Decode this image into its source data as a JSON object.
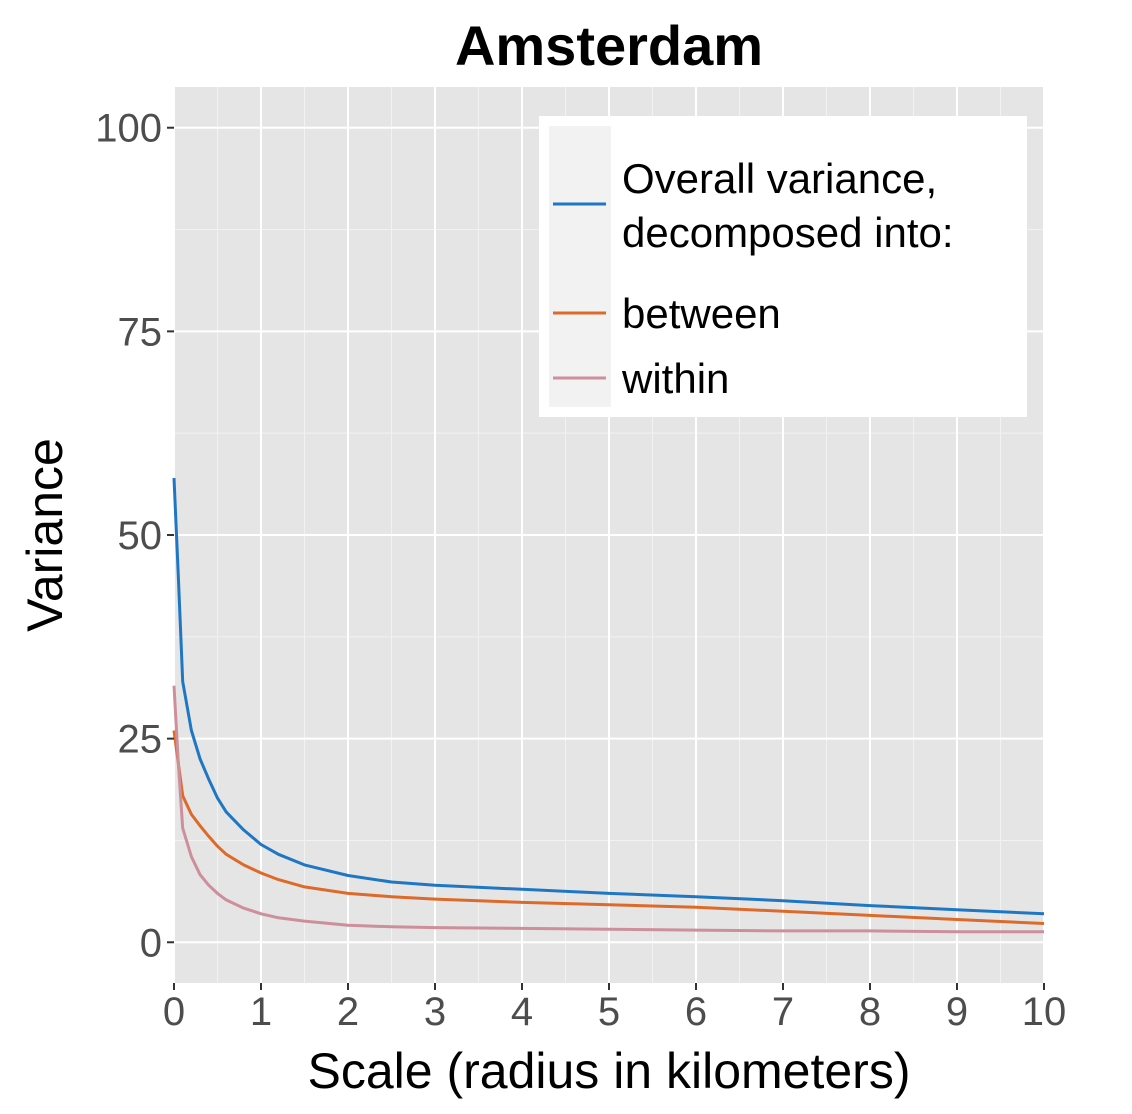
{
  "chart_data": {
    "type": "line",
    "title": "Amsterdam",
    "xlabel": "Scale (radius in kilometers)",
    "ylabel": "Variance",
    "xlim": [
      0,
      10
    ],
    "ylim": [
      -5,
      105
    ],
    "x_ticks": [
      0,
      1,
      2,
      3,
      4,
      5,
      6,
      7,
      8,
      9,
      10
    ],
    "y_ticks": [
      0,
      25,
      50,
      75,
      100
    ],
    "grid": true,
    "legend_position": "top-right",
    "background_color": "#e5e5e5",
    "series": [
      {
        "name_lines": [
          "Overall variance,",
          "decomposed into:"
        ],
        "color": "#1f77c4",
        "x": [
          0,
          0.05,
          0.1,
          0.2,
          0.3,
          0.4,
          0.5,
          0.6,
          0.8,
          1.0,
          1.2,
          1.5,
          2.0,
          2.5,
          3,
          4,
          5,
          6,
          7,
          8,
          9,
          10
        ],
        "values": [
          57,
          45,
          32,
          26,
          22.5,
          20,
          17.7,
          16,
          13.8,
          12,
          10.8,
          9.5,
          8.2,
          7.4,
          7,
          6.5,
          6,
          5.6,
          5.1,
          4.5,
          4,
          3.5
        ]
      },
      {
        "name": "between",
        "color": "#dd6a2a",
        "x": [
          0,
          0.05,
          0.1,
          0.2,
          0.3,
          0.4,
          0.5,
          0.6,
          0.8,
          1.0,
          1.2,
          1.5,
          2.0,
          2.5,
          3,
          4,
          5,
          6,
          7,
          8,
          9,
          10
        ],
        "values": [
          26,
          22,
          18,
          15.7,
          14.3,
          13,
          11.8,
          10.8,
          9.5,
          8.5,
          7.7,
          6.8,
          6,
          5.6,
          5.3,
          4.9,
          4.6,
          4.3,
          3.8,
          3.3,
          2.8,
          2.3
        ]
      },
      {
        "name": "within",
        "color": "#cc8f9b",
        "x": [
          0,
          0.05,
          0.1,
          0.2,
          0.3,
          0.4,
          0.5,
          0.6,
          0.8,
          1.0,
          1.2,
          1.5,
          2.0,
          2.5,
          3,
          4,
          5,
          6,
          7,
          8,
          9,
          10
        ],
        "values": [
          31.5,
          22,
          14,
          10.5,
          8.3,
          7,
          6,
          5.2,
          4.2,
          3.5,
          3,
          2.6,
          2.1,
          1.9,
          1.8,
          1.7,
          1.6,
          1.5,
          1.4,
          1.4,
          1.3,
          1.3
        ]
      }
    ]
  }
}
